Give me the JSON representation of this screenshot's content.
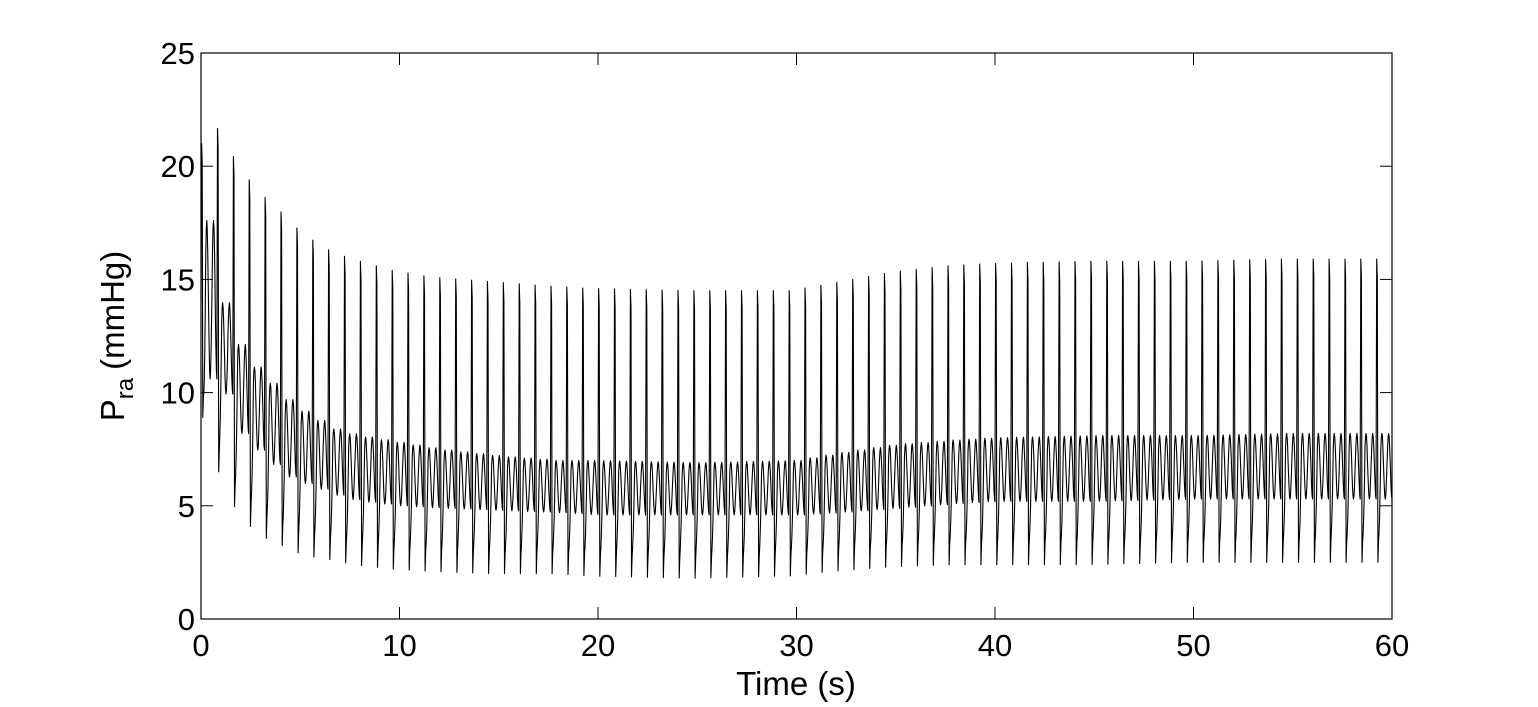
{
  "chart_data": {
    "type": "line",
    "title": "",
    "xlabel": "Time (s)",
    "ylabel_main": "P",
    "ylabel_sub": "ra",
    "ylabel_unit": "(mmHg)",
    "xlim": [
      0,
      60
    ],
    "ylim": [
      0,
      25
    ],
    "xticks": [
      0,
      10,
      20,
      30,
      40,
      50,
      60
    ],
    "yticks": [
      0,
      5,
      10,
      15,
      20,
      25
    ],
    "grid": false,
    "legend": "none",
    "line_color": "#000000",
    "series": [
      {
        "beat_period_s": 0.8,
        "beat_count": 75,
        "envelope_t": [
          0,
          0.6,
          1.0,
          1.6,
          2.5,
          3.5,
          4.5,
          5.5,
          7,
          8,
          10,
          12,
          15,
          18,
          20,
          25,
          30,
          32,
          35,
          38,
          40,
          45,
          50,
          55,
          60
        ],
        "systolic_peak": [
          21,
          21,
          22,
          21,
          19.7,
          18.7,
          17.9,
          17,
          16.2,
          15.9,
          15.4,
          15.1,
          14.9,
          14.7,
          14.6,
          14.5,
          14.5,
          14.8,
          15.3,
          15.6,
          15.7,
          15.8,
          15.8,
          15.9,
          15.9
        ],
        "diastolic_min": [
          8.7,
          9,
          7,
          5.5,
          4.3,
          3.6,
          3.2,
          2.8,
          2.6,
          2.4,
          2.2,
          2.1,
          2.0,
          2.0,
          1.9,
          1.8,
          1.9,
          2.1,
          2.3,
          2.4,
          2.4,
          2.4,
          2.5,
          2.5,
          2.5
        ],
        "wave_max": [
          17.6,
          17.6,
          14.6,
          12.7,
          11.4,
          10.5,
          9.6,
          9,
          8.3,
          8.1,
          7.8,
          7.5,
          7.2,
          7.0,
          7.0,
          6.9,
          7.0,
          7.3,
          7.7,
          7.9,
          8.0,
          8.1,
          8.1,
          8.2,
          8.2
        ],
        "wave_min": [
          10.6,
          10.6,
          10.6,
          8.6,
          7.7,
          6.9,
          6.2,
          5.9,
          5.4,
          5.2,
          5.0,
          4.9,
          4.8,
          4.7,
          4.6,
          4.6,
          4.6,
          4.7,
          4.9,
          5.1,
          5.2,
          5.2,
          5.3,
          5.3,
          5.3
        ]
      }
    ]
  }
}
